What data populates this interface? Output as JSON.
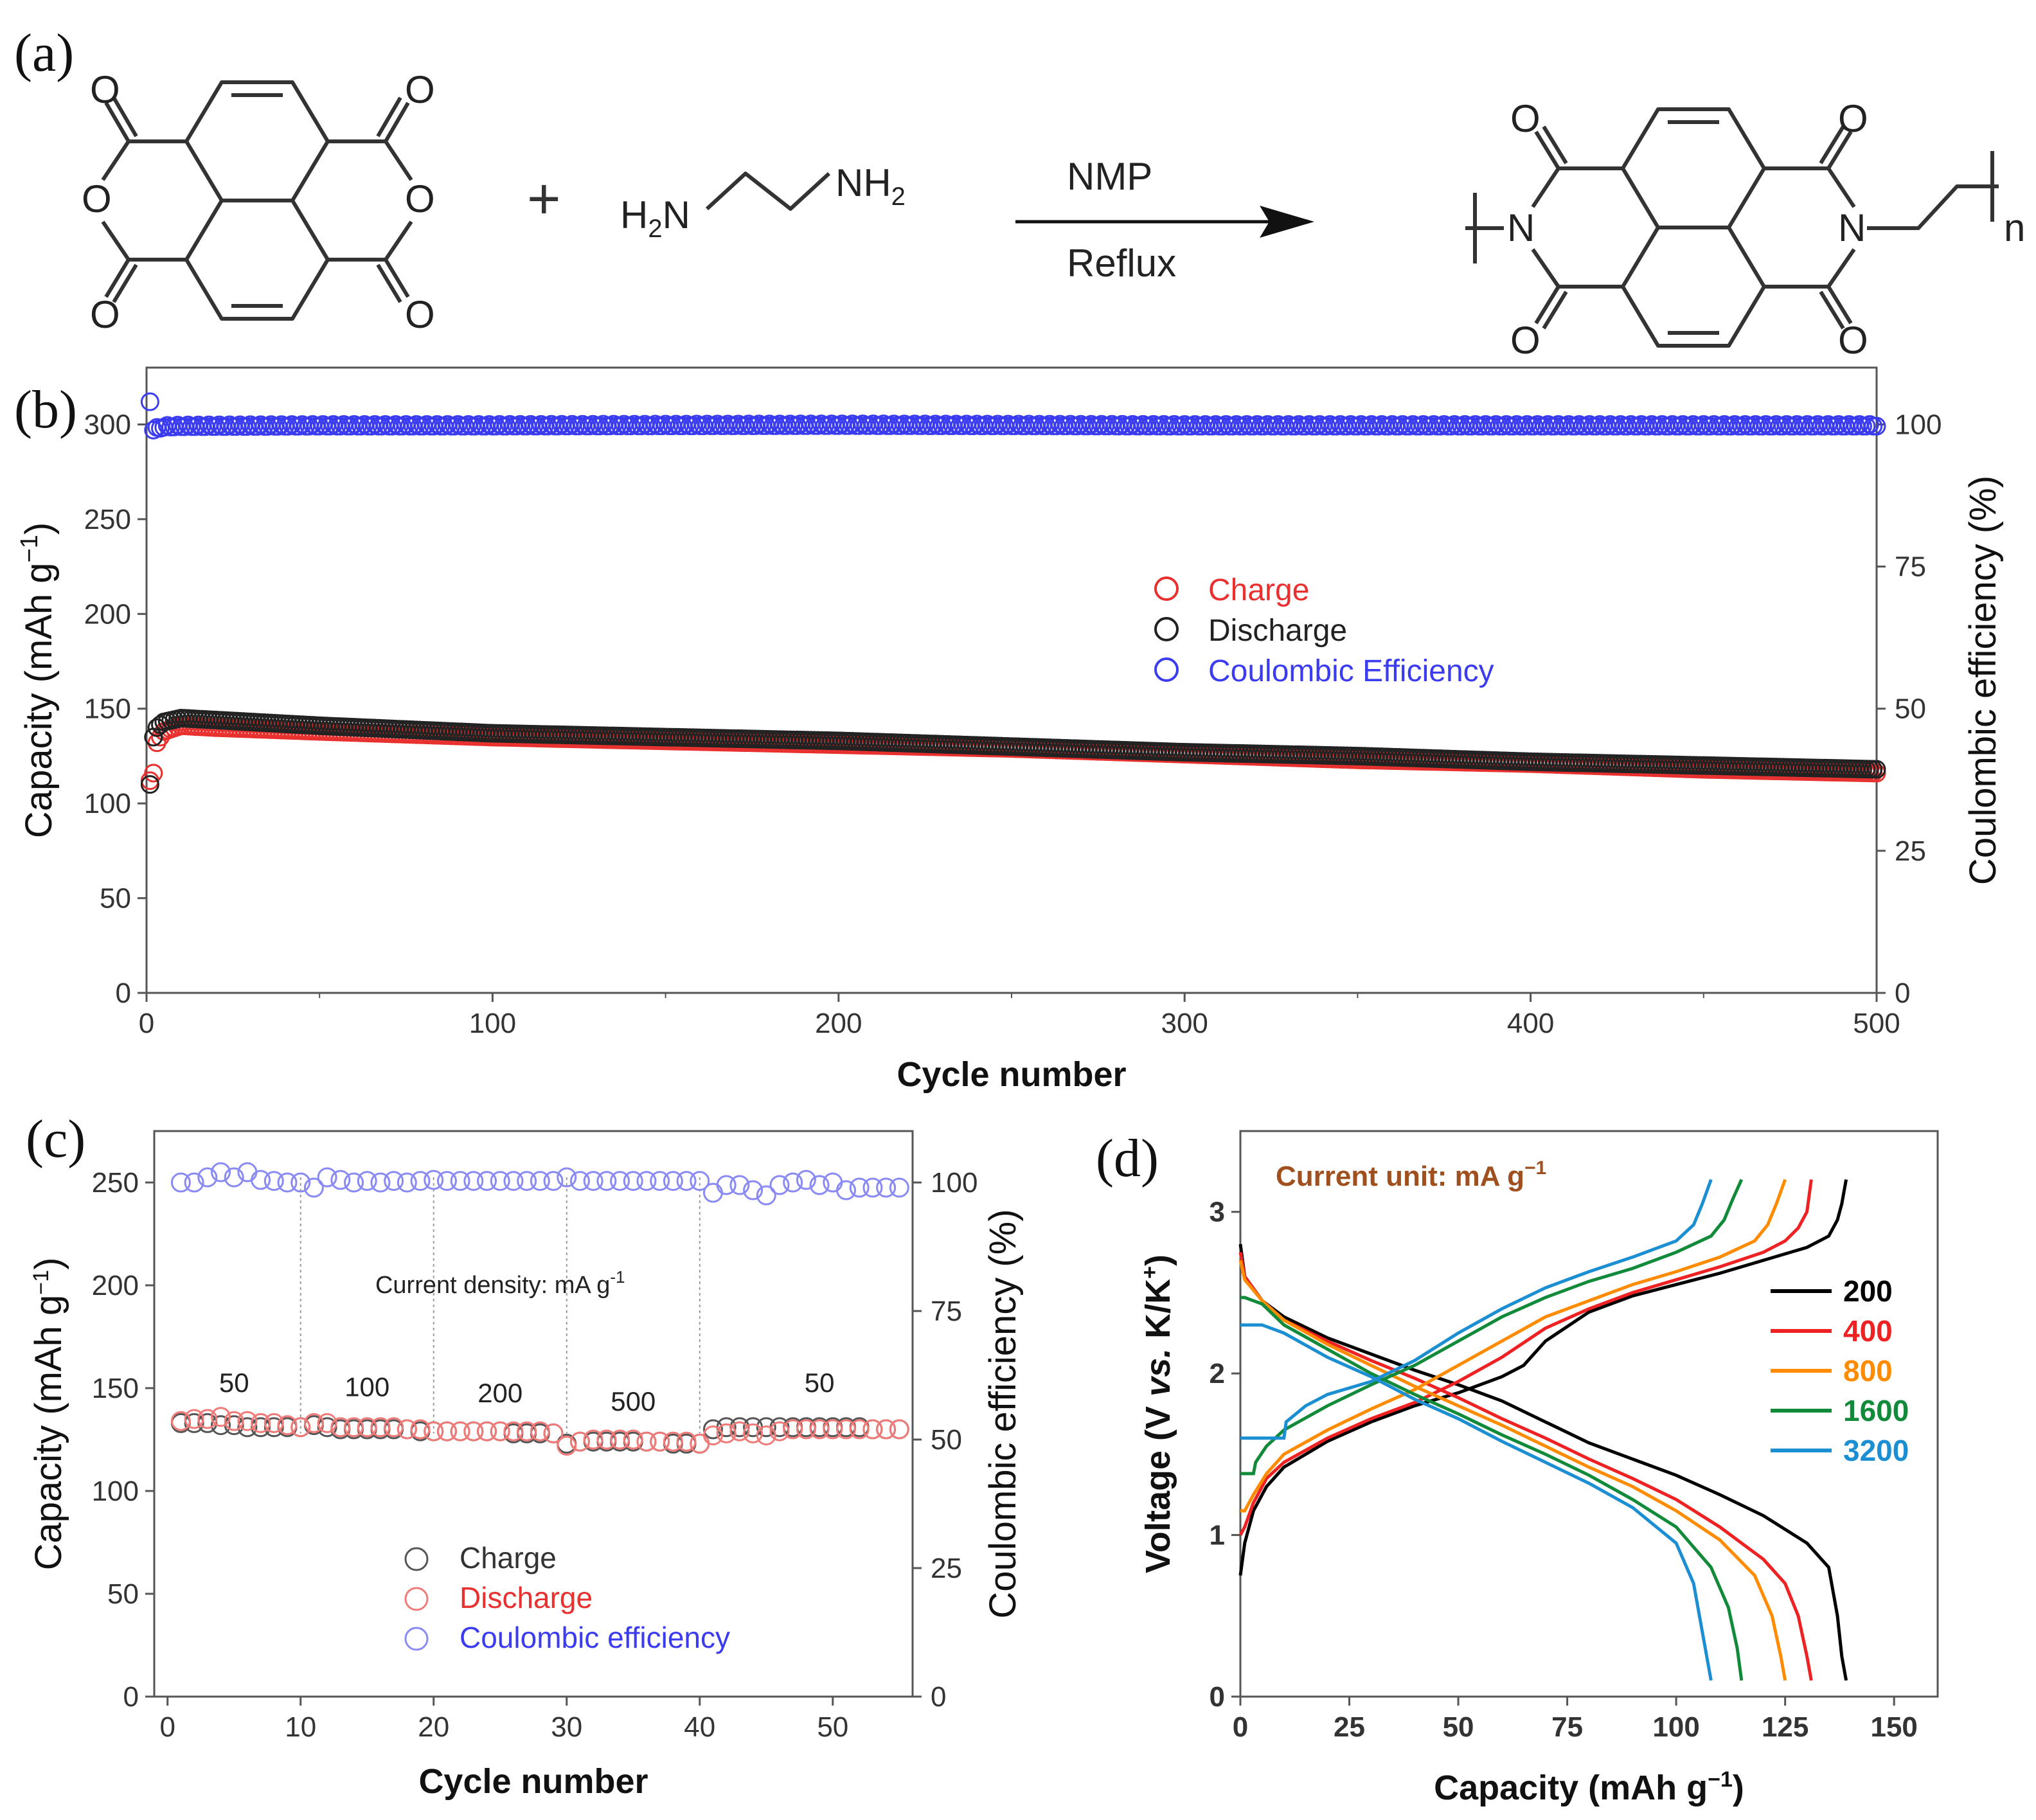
{
  "panels": {
    "a": {
      "label": "(a)",
      "reagent_left": "H",
      "reagent_left_sub": "2",
      "reagent_left_tail": "N",
      "reagent_right": "NH",
      "reagent_right_sub": "2",
      "plus": "+",
      "solvent": "NMP",
      "condition": "Reflux",
      "atom_O": "O",
      "atom_N": "N",
      "repeat_n": "n"
    },
    "b": {
      "label": "(b)"
    },
    "c": {
      "label": "(c)"
    },
    "d": {
      "label": "(d)"
    }
  },
  "colors": {
    "charge_red": "#e8302f",
    "discharge_black": "#222222",
    "ce_blue": "#3b3bf0",
    "c_red": "#f07a78",
    "c_black": "#555555",
    "c_blue": "#8a8af4",
    "d_200": "#000000",
    "d_400": "#ee2222",
    "d_800": "#ff8c00",
    "d_1600": "#118a3a",
    "d_3200": "#1b8fd2",
    "annotation_brown": "#a0501e"
  },
  "chart_data": [
    {
      "id": "b",
      "type": "scatter",
      "xlabel": "Cycle number",
      "ylabel": "Capacity (mAh g",
      "ylabel_sup": "−1",
      "ylabel_tail": ")",
      "y2label": "Coulombic efficiency (%)",
      "xlim": [
        0,
        500
      ],
      "ylim": [
        0,
        330
      ],
      "y2lim": [
        0,
        110
      ],
      "xticks": [
        0,
        100,
        200,
        300,
        400,
        500
      ],
      "yticks": [
        0,
        50,
        100,
        150,
        200,
        250,
        300
      ],
      "y2ticks": [
        0,
        25,
        50,
        75,
        100
      ],
      "legend": [
        "Charge",
        "Discharge",
        "Coulombic Efficiency"
      ],
      "legend_position": "center",
      "series": [
        {
          "name": "Charge",
          "axis": "left",
          "x": [
            1,
            2,
            3,
            5,
            10,
            20,
            50,
            100,
            150,
            200,
            250,
            300,
            350,
            400,
            450,
            500
          ],
          "values": [
            112,
            116,
            132,
            138,
            141,
            140,
            138,
            135,
            133,
            131,
            129,
            126,
            123,
            121,
            118,
            116
          ]
        },
        {
          "name": "Discharge",
          "axis": "left",
          "x": [
            1,
            2,
            3,
            5,
            10,
            20,
            50,
            100,
            150,
            200,
            250,
            300,
            350,
            400,
            450,
            500
          ],
          "values": [
            110,
            135,
            140,
            143,
            145,
            144,
            141,
            137,
            135,
            133,
            130,
            127,
            125,
            122,
            120,
            118
          ]
        },
        {
          "name": "Coulombic Efficiency",
          "axis": "right",
          "x": [
            1,
            2,
            5,
            10,
            50,
            100,
            200,
            300,
            400,
            500
          ],
          "values": [
            104,
            99,
            99.5,
            99.6,
            99.7,
            99.7,
            99.8,
            99.7,
            99.7,
            99.7
          ]
        }
      ]
    },
    {
      "id": "c",
      "type": "scatter",
      "xlabel": "Cycle number",
      "ylabel": "Capacity (mAh g",
      "ylabel_sup": "−1",
      "ylabel_tail": ")",
      "y2label": "Coulombic efficiency (%)",
      "xlim": [
        -1,
        56
      ],
      "ylim": [
        0,
        275
      ],
      "y2lim": [
        0,
        110
      ],
      "xticks": [
        0,
        10,
        20,
        30,
        40,
        50
      ],
      "yticks": [
        0,
        50,
        100,
        150,
        200,
        250
      ],
      "y2ticks": [
        0,
        25,
        50,
        75,
        100
      ],
      "annotation": "Current density: mA g",
      "annotation_sup": "-1",
      "rate_labels": [
        {
          "text": "50",
          "x": 5,
          "y": 145
        },
        {
          "text": "100",
          "x": 15,
          "y": 143
        },
        {
          "text": "200",
          "x": 25,
          "y": 140
        },
        {
          "text": "500",
          "x": 35,
          "y": 136
        },
        {
          "text": "50",
          "x": 49,
          "y": 145
        }
      ],
      "dividers": [
        10,
        20,
        30,
        40
      ],
      "legend": [
        "Charge",
        "Discharge",
        "Coulombic efficiency"
      ],
      "legend_position": "bottom-center",
      "series": [
        {
          "name": "Charge",
          "axis": "left",
          "x": [
            1,
            2,
            3,
            4,
            5,
            6,
            7,
            8,
            9,
            10,
            11,
            12,
            13,
            14,
            15,
            16,
            17,
            18,
            19,
            20,
            21,
            22,
            23,
            24,
            25,
            26,
            27,
            28,
            29,
            30,
            31,
            32,
            33,
            34,
            35,
            36,
            37,
            38,
            39,
            40,
            41,
            42,
            43,
            44,
            45,
            46,
            47,
            48,
            49,
            50,
            51,
            52,
            53,
            54,
            55
          ],
          "values": [
            133,
            133,
            133,
            132,
            132,
            131,
            131,
            131,
            131,
            131,
            132,
            131,
            130,
            130,
            130,
            130,
            130,
            130,
            129,
            129,
            129,
            129,
            129,
            129,
            129,
            128,
            128,
            128,
            128,
            123,
            124,
            124,
            124,
            124,
            124,
            124,
            124,
            123,
            123,
            123,
            130,
            131,
            131,
            131,
            131,
            131,
            131,
            131,
            131,
            131,
            131,
            131,
            130,
            130,
            130
          ]
        },
        {
          "name": "Discharge",
          "axis": "left",
          "x": [
            1,
            2,
            3,
            4,
            5,
            6,
            7,
            8,
            9,
            10,
            11,
            12,
            13,
            14,
            15,
            16,
            17,
            18,
            19,
            20,
            21,
            22,
            23,
            24,
            25,
            26,
            27,
            28,
            29,
            30,
            31,
            32,
            33,
            34,
            35,
            36,
            37,
            38,
            39,
            40,
            41,
            42,
            43,
            44,
            45,
            46,
            47,
            48,
            49,
            50,
            51,
            52,
            53,
            54,
            55
          ],
          "values": [
            134,
            135,
            135,
            136,
            134,
            134,
            133,
            133,
            132,
            131,
            133,
            133,
            131,
            131,
            131,
            131,
            131,
            130,
            130,
            129,
            129,
            129,
            129,
            129,
            129,
            129,
            129,
            129,
            128,
            122,
            124,
            125,
            125,
            125,
            125,
            124,
            124,
            124,
            124,
            123,
            127,
            128,
            129,
            128,
            127,
            129,
            130,
            130,
            130,
            130,
            130,
            130,
            130,
            130,
            130
          ]
        },
        {
          "name": "Coulombic efficiency",
          "axis": "right",
          "x": [
            1,
            2,
            3,
            4,
            5,
            6,
            7,
            8,
            9,
            10,
            11,
            12,
            13,
            14,
            15,
            16,
            17,
            18,
            19,
            20,
            21,
            22,
            23,
            24,
            25,
            26,
            27,
            28,
            29,
            30,
            31,
            32,
            33,
            34,
            35,
            36,
            37,
            38,
            39,
            40,
            41,
            42,
            43,
            44,
            45,
            46,
            47,
            48,
            49,
            50,
            51,
            52,
            53,
            54,
            55
          ],
          "values": [
            100,
            100,
            101,
            102,
            101,
            102,
            100.5,
            100.3,
            100,
            100,
            99,
            101,
            100.5,
            100,
            100.3,
            100,
            100.3,
            100,
            100.3,
            100.5,
            100.3,
            100.3,
            100.3,
            100.3,
            100.3,
            100.3,
            100.3,
            100.3,
            100.3,
            101,
            100.3,
            100.3,
            100.3,
            100.3,
            100.3,
            100.3,
            100.3,
            100.3,
            100.3,
            100.3,
            98,
            99.5,
            99.5,
            98.5,
            97.5,
            99.5,
            100,
            100.5,
            99.5,
            100,
            98.5,
            99,
            99,
            99,
            99
          ]
        }
      ]
    },
    {
      "id": "d",
      "type": "line",
      "xlabel": "Capacity (mAh g",
      "xlabel_sup": "−1",
      "xlabel_tail": ")",
      "ylabel": "Voltage (V ",
      "ylabel_italic": "vs.",
      "ylabel_tail": " K/K",
      "ylabel_sup": "+",
      "ylabel_close": ")",
      "annotation": "Current unit: mA g",
      "annotation_sup": "−1",
      "xlim": [
        0,
        160
      ],
      "ylim": [
        0,
        3.5
      ],
      "xticks": [
        0,
        25,
        50,
        75,
        100,
        125,
        150
      ],
      "yticks": [
        0,
        1,
        2,
        3
      ],
      "legend": [
        "200",
        "400",
        "800",
        "1600",
        "3200"
      ],
      "legend_position": "right",
      "series": [
        {
          "name": "200",
          "discharge": {
            "x": [
              0,
              1,
              5,
              10,
              20,
              30,
              40,
              50,
              60,
              70,
              80,
              90,
              100,
              110,
              120,
              130,
              135,
              137,
              138,
              139
            ],
            "y": [
              2.8,
              2.6,
              2.45,
              2.35,
              2.22,
              2.12,
              2.02,
              1.93,
              1.83,
              1.7,
              1.57,
              1.47,
              1.37,
              1.25,
              1.12,
              0.95,
              0.8,
              0.5,
              0.25,
              0.1
            ]
          },
          "charge": {
            "x": [
              0,
              1,
              3,
              6,
              10,
              20,
              30,
              40,
              50,
              60,
              65,
              70,
              80,
              90,
              100,
              110,
              120,
              130,
              135,
              137,
              138,
              139
            ],
            "y": [
              0.75,
              0.95,
              1.15,
              1.3,
              1.42,
              1.58,
              1.7,
              1.8,
              1.88,
              1.98,
              2.05,
              2.2,
              2.38,
              2.48,
              2.55,
              2.62,
              2.7,
              2.78,
              2.85,
              2.95,
              3.05,
              3.2
            ]
          }
        },
        {
          "name": "400",
          "discharge": {
            "x": [
              0,
              1,
              5,
              10,
              20,
              30,
              40,
              50,
              60,
              70,
              80,
              90,
              100,
              110,
              120,
              125,
              128,
              130,
              131
            ],
            "y": [
              2.75,
              2.6,
              2.45,
              2.33,
              2.2,
              2.08,
              1.97,
              1.85,
              1.72,
              1.6,
              1.47,
              1.35,
              1.22,
              1.05,
              0.85,
              0.7,
              0.5,
              0.25,
              0.1
            ]
          },
          "charge": {
            "x": [
              0,
              1,
              3,
              6,
              10,
              20,
              30,
              40,
              50,
              60,
              70,
              80,
              90,
              100,
              110,
              120,
              125,
              128,
              130,
              131
            ],
            "y": [
              1.0,
              1.05,
              1.2,
              1.35,
              1.45,
              1.6,
              1.72,
              1.82,
              1.95,
              2.1,
              2.28,
              2.4,
              2.5,
              2.58,
              2.66,
              2.75,
              2.82,
              2.9,
              3.0,
              3.2
            ]
          }
        },
        {
          "name": "800",
          "discharge": {
            "x": [
              0,
              1,
              5,
              10,
              20,
              30,
              40,
              50,
              60,
              70,
              80,
              90,
              100,
              110,
              118,
              122,
              124,
              125
            ],
            "y": [
              2.7,
              2.58,
              2.45,
              2.33,
              2.18,
              2.05,
              1.92,
              1.8,
              1.68,
              1.55,
              1.42,
              1.3,
              1.15,
              0.97,
              0.75,
              0.5,
              0.25,
              0.1
            ]
          },
          "charge": {
            "x": [
              0,
              1,
              3,
              6,
              10,
              20,
              30,
              40,
              50,
              60,
              70,
              80,
              90,
              100,
              110,
              118,
              121,
              123,
              125
            ],
            "y": [
              1.15,
              1.15,
              1.25,
              1.38,
              1.5,
              1.65,
              1.78,
              1.9,
              2.05,
              2.2,
              2.35,
              2.45,
              2.55,
              2.63,
              2.72,
              2.82,
              2.92,
              3.05,
              3.2
            ]
          }
        },
        {
          "name": "1600",
          "discharge": {
            "x": [
              0,
              1,
              5,
              10,
              20,
              30,
              40,
              50,
              60,
              70,
              80,
              90,
              100,
              108,
              112,
              114,
              115
            ],
            "y": [
              2.47,
              2.47,
              2.43,
              2.3,
              2.15,
              2.0,
              1.87,
              1.75,
              1.62,
              1.5,
              1.37,
              1.22,
              1.05,
              0.8,
              0.55,
              0.3,
              0.1
            ]
          },
          "charge": {
            "x": [
              0,
              3,
              3.5,
              6,
              10,
              20,
              30,
              40,
              50,
              60,
              70,
              80,
              90,
              100,
              108,
              111,
              113,
              115
            ],
            "y": [
              1.38,
              1.38,
              1.45,
              1.55,
              1.65,
              1.8,
              1.93,
              2.05,
              2.2,
              2.35,
              2.47,
              2.57,
              2.65,
              2.75,
              2.85,
              2.95,
              3.08,
              3.2
            ]
          }
        },
        {
          "name": "3200",
          "discharge": {
            "x": [
              0,
              1,
              5,
              10,
              20,
              30,
              40,
              50,
              60,
              70,
              80,
              90,
              100,
              104,
              106,
              108
            ],
            "y": [
              2.3,
              2.3,
              2.3,
              2.25,
              2.1,
              1.98,
              1.84,
              1.72,
              1.58,
              1.45,
              1.32,
              1.17,
              0.95,
              0.7,
              0.4,
              0.1
            ]
          },
          "charge": {
            "x": [
              0,
              10,
              10.5,
              15,
              20,
              30,
              40,
              50,
              60,
              70,
              80,
              90,
              100,
              104,
              106,
              108
            ],
            "y": [
              1.6,
              1.6,
              1.7,
              1.8,
              1.87,
              1.95,
              2.08,
              2.25,
              2.4,
              2.53,
              2.63,
              2.72,
              2.82,
              2.92,
              3.05,
              3.2
            ]
          }
        }
      ]
    }
  ]
}
